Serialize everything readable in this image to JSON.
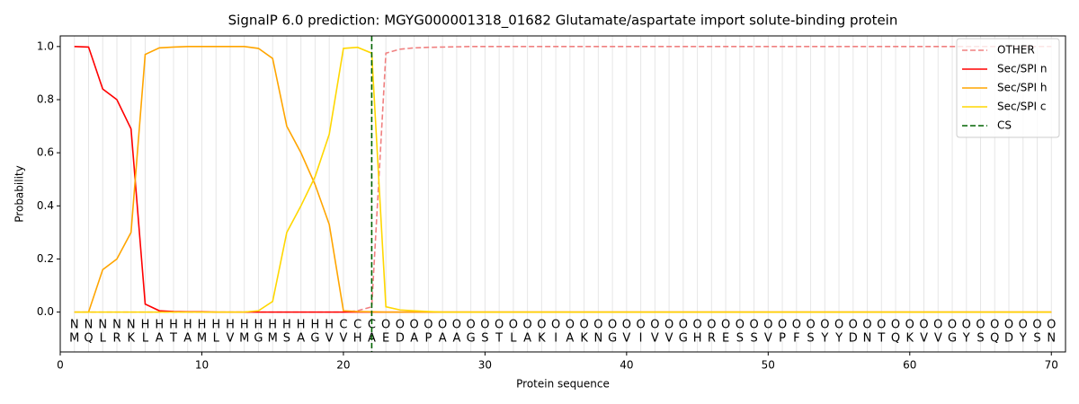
{
  "chart_data": {
    "type": "line",
    "title": "SignalP 6.0 prediction: MGYG000001318_01682 Glutamate/aspartate import solute-binding protein",
    "xlabel": "Protein sequence",
    "ylabel": "Probability",
    "x": [
      1,
      2,
      3,
      4,
      5,
      6,
      7,
      8,
      9,
      10,
      11,
      12,
      13,
      14,
      15,
      16,
      17,
      18,
      19,
      20,
      21,
      22,
      23,
      24,
      25,
      26,
      27,
      28,
      29,
      30,
      31,
      32,
      33,
      34,
      35,
      36,
      37,
      38,
      39,
      40,
      41,
      42,
      43,
      44,
      45,
      46,
      47,
      48,
      49,
      50,
      51,
      52,
      53,
      54,
      55,
      56,
      57,
      58,
      59,
      60,
      61,
      62,
      63,
      64,
      65,
      66,
      67,
      68,
      69,
      70
    ],
    "residues": [
      "M",
      "Q",
      "L",
      "R",
      "K",
      "L",
      "A",
      "T",
      "A",
      "M",
      "L",
      "V",
      "M",
      "G",
      "M",
      "S",
      "A",
      "G",
      "V",
      "V",
      "H",
      "A",
      "E",
      "D",
      "A",
      "P",
      "A",
      "A",
      "G",
      "S",
      "T",
      "L",
      "A",
      "K",
      "I",
      "A",
      "K",
      "N",
      "G",
      "V",
      "I",
      "V",
      "V",
      "G",
      "H",
      "R",
      "E",
      "S",
      "S",
      "V",
      "P",
      "F",
      "S",
      "Y",
      "Y",
      "D",
      "N",
      "T",
      "Q",
      "K",
      "V",
      "V",
      "G",
      "Y",
      "S",
      "Q",
      "D",
      "Y",
      "S",
      "N"
    ],
    "regions": [
      "N",
      "N",
      "N",
      "N",
      "N",
      "H",
      "H",
      "H",
      "H",
      "H",
      "H",
      "H",
      "H",
      "H",
      "H",
      "H",
      "H",
      "H",
      "H",
      "C",
      "C",
      "C",
      "O",
      "O",
      "O",
      "O",
      "O",
      "O",
      "O",
      "O",
      "O",
      "O",
      "O",
      "O",
      "O",
      "O",
      "O",
      "O",
      "O",
      "O",
      "O",
      "O",
      "O",
      "O",
      "O",
      "O",
      "O",
      "O",
      "O",
      "O",
      "O",
      "O",
      "O",
      "O",
      "O",
      "O",
      "O",
      "O",
      "O",
      "O",
      "O",
      "O",
      "O",
      "O",
      "O",
      "O",
      "O",
      "O",
      "O",
      "O"
    ],
    "region_colors": {
      "N": "#ff0000",
      "H": "#ffa500",
      "C": "#ffd700",
      "O": "#808080"
    },
    "series": [
      {
        "name": "OTHER",
        "color": "#f08080",
        "dash": true,
        "values": [
          0,
          0,
          0,
          0,
          0,
          0,
          0,
          0,
          0,
          0,
          0,
          0,
          0,
          0,
          0,
          0,
          0,
          0,
          0,
          0,
          0.005,
          0.02,
          0.975,
          0.99,
          0.995,
          0.997,
          0.998,
          0.999,
          1,
          1,
          1,
          1,
          1,
          1,
          1,
          1,
          1,
          1,
          1,
          1,
          1,
          1,
          1,
          1,
          1,
          1,
          1,
          1,
          1,
          1,
          1,
          1,
          1,
          1,
          1,
          1,
          1,
          1,
          1,
          1,
          1,
          1,
          1,
          1,
          1,
          1,
          1,
          1,
          1,
          1
        ]
      },
      {
        "name": "Sec/SPI n",
        "color": "#ff0000",
        "values": [
          1.0,
          0.998,
          0.84,
          0.8,
          0.69,
          0.03,
          0.005,
          0.002,
          0.001,
          0.001,
          0,
          0,
          0,
          0,
          0,
          0,
          0,
          0,
          0,
          0,
          0,
          0,
          0,
          0,
          0,
          0,
          0,
          0,
          0,
          0,
          0,
          0,
          0,
          0,
          0,
          0,
          0,
          0,
          0,
          0,
          0,
          0,
          0,
          0,
          0,
          0,
          0,
          0,
          0,
          0,
          0,
          0,
          0,
          0,
          0,
          0,
          0,
          0,
          0,
          0,
          0,
          0,
          0,
          0,
          0,
          0,
          0,
          0,
          0,
          0
        ]
      },
      {
        "name": "Sec/SPI h",
        "color": "#ffa500",
        "values": [
          0,
          0,
          0.16,
          0.2,
          0.3,
          0.97,
          0.995,
          0.998,
          1,
          1,
          1,
          1,
          1,
          0.993,
          0.955,
          0.7,
          0.6,
          0.48,
          0.33,
          0.005,
          0.002,
          0.001,
          0,
          0,
          0,
          0,
          0,
          0,
          0,
          0,
          0,
          0,
          0,
          0,
          0,
          0,
          0,
          0,
          0,
          0,
          0,
          0,
          0,
          0,
          0,
          0,
          0,
          0,
          0,
          0,
          0,
          0,
          0,
          0,
          0,
          0,
          0,
          0,
          0,
          0,
          0,
          0,
          0,
          0,
          0,
          0,
          0,
          0,
          0,
          0
        ]
      },
      {
        "name": "Sec/SPI c",
        "color": "#ffd700",
        "values": [
          0,
          0,
          0,
          0,
          0,
          0,
          0,
          0,
          0,
          0,
          0,
          0,
          0,
          0.005,
          0.04,
          0.3,
          0.4,
          0.51,
          0.67,
          0.993,
          0.997,
          0.975,
          0.02,
          0.008,
          0.005,
          0.002,
          0,
          0,
          0,
          0,
          0,
          0,
          0,
          0,
          0,
          0,
          0,
          0,
          0,
          0,
          0,
          0,
          0,
          0,
          0,
          0,
          0,
          0,
          0,
          0,
          0,
          0,
          0,
          0,
          0,
          0,
          0,
          0,
          0,
          0,
          0,
          0,
          0,
          0,
          0,
          0,
          0,
          0,
          0,
          0
        ]
      }
    ],
    "cs": {
      "name": "CS",
      "color": "#006400",
      "x": 22
    },
    "xlim": [
      0,
      71
    ],
    "ylim": [
      -0.15,
      1.04
    ],
    "xticks": [
      0,
      10,
      20,
      30,
      40,
      50,
      60,
      70
    ],
    "yticks": [
      {
        "value": 0,
        "label": "0.0"
      },
      {
        "value": 0.2,
        "label": "0.2"
      },
      {
        "value": 0.4,
        "label": "0.4"
      },
      {
        "value": 0.6,
        "label": "0.6"
      },
      {
        "value": 0.8,
        "label": "0.8"
      },
      {
        "value": 1.0,
        "label": "1.0"
      }
    ],
    "grid": true,
    "legend": "upper right"
  }
}
